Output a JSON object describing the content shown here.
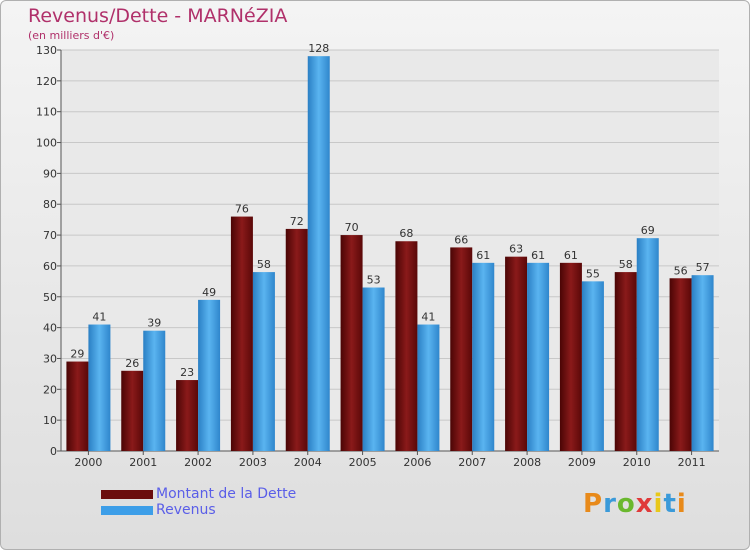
{
  "header": {
    "title": "Revenus/Dette - MARNéZIA",
    "subtitle": "(en milliers d'€)"
  },
  "legend": [
    {
      "label": "Montant de la Dette",
      "color": "#6b0d0d"
    },
    {
      "label": "Revenus",
      "color": "#3d9ee8"
    }
  ],
  "logo": {
    "text": "Proxiti",
    "letters": [
      "P",
      "r",
      "o",
      "x",
      "i",
      "t",
      "i"
    ],
    "colors": [
      "#e88a1a",
      "#3a9ad9",
      "#6ab82e",
      "#e03a3a",
      "#e8c81a",
      "#3a9ad9",
      "#e88a1a"
    ]
  },
  "colors": {
    "debt": "#6b0d0d",
    "revenue": "#3d9ee8",
    "title": "#b0306a",
    "grid": "#c8c8c8"
  },
  "chart_data": {
    "type": "bar",
    "title": "Revenus/Dette - MARNéZIA",
    "subtitle": "(en milliers d'€)",
    "xlabel": "",
    "ylabel": "",
    "categories": [
      "2000",
      "2001",
      "2002",
      "2003",
      "2004",
      "2005",
      "2006",
      "2007",
      "2008",
      "2009",
      "2010",
      "2011"
    ],
    "series": [
      {
        "name": "Montant de la Dette",
        "values": [
          29,
          26,
          23,
          76,
          72,
          70,
          68,
          66,
          63,
          61,
          58,
          56
        ]
      },
      {
        "name": "Revenus",
        "values": [
          41,
          39,
          49,
          58,
          128,
          53,
          41,
          61,
          61,
          55,
          69,
          57
        ]
      }
    ],
    "ylim": [
      0,
      130
    ],
    "yticks": [
      0,
      10,
      20,
      30,
      40,
      50,
      60,
      70,
      80,
      90,
      100,
      110,
      120,
      130
    ],
    "grid": true,
    "legend_position": "bottom-left"
  }
}
